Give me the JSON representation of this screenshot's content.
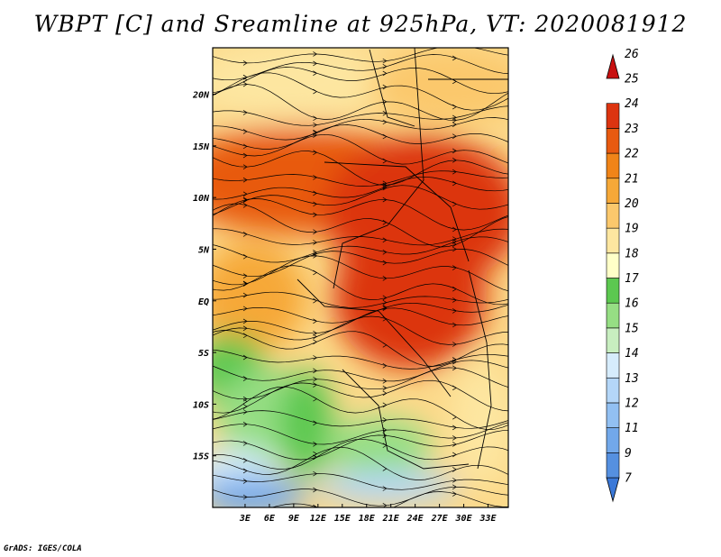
{
  "title": "WBPT [C] and Sreamline at 925hPa, VT: 2020081912",
  "credit": "GrADS: IGES/COLA",
  "map": {
    "lon_range": [
      -1,
      35.5
    ],
    "lat_range": [
      -20,
      24.5
    ],
    "lon_ticks": [
      "3E",
      "6E",
      "9E",
      "12E",
      "15E",
      "18E",
      "21E",
      "24E",
      "27E",
      "30E",
      "33E"
    ],
    "lat_ticks": [
      "20N",
      "15N",
      "10N",
      "5N",
      "EQ",
      "5S",
      "10S",
      "15S"
    ]
  },
  "colorbar": {
    "levels": [
      "7",
      "9",
      "11",
      "12",
      "13",
      "14",
      "15",
      "16",
      "17",
      "18",
      "19",
      "20",
      "21",
      "22",
      "23",
      "24",
      "25",
      "26"
    ],
    "colors": [
      "#3a78d8",
      "#5590e0",
      "#72a8ea",
      "#92c0f2",
      "#b4d6f8",
      "#d6ecfc",
      "#c8eec0",
      "#96de84",
      "#5cc850",
      "#ffffc8",
      "#fde6a0",
      "#fbc86c",
      "#f6a838",
      "#f08418",
      "#e85a10",
      "#dc3410",
      "#c81010"
    ]
  }
}
